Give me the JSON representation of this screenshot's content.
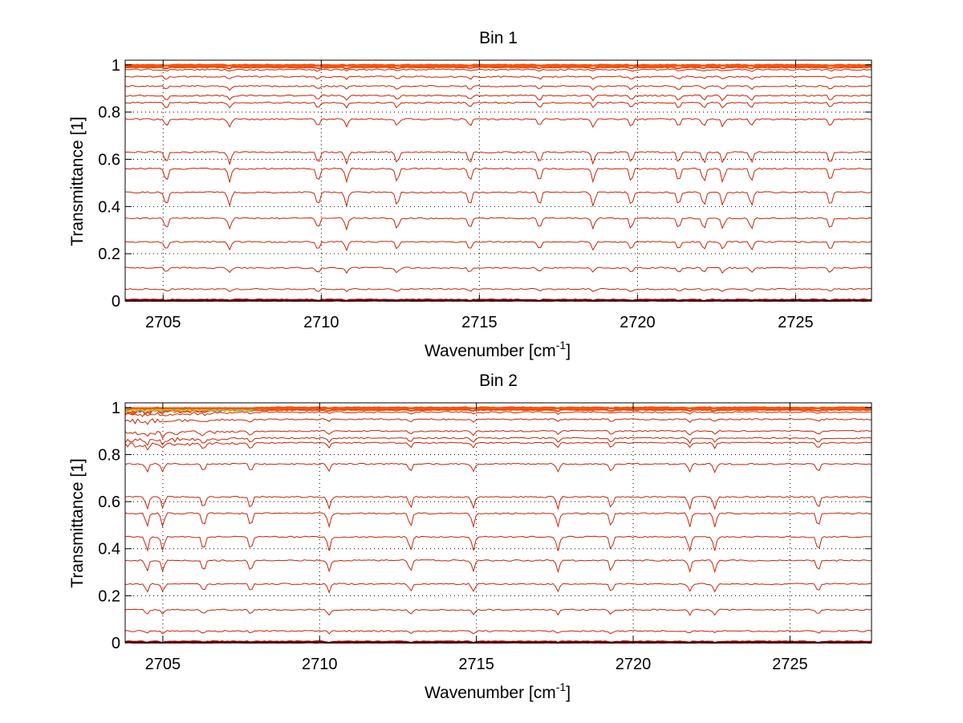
{
  "chart_data": [
    {
      "type": "line",
      "title": "Bin 1",
      "xlabel": "Wavenumber [cm",
      "xlabel_sup": "-1",
      "xlabel_close": "]",
      "ylabel": "Transmittance [1]",
      "xlim": [
        2703.8,
        2727.4
      ],
      "ylim": [
        0,
        1.02
      ],
      "xticks": [
        2705,
        2710,
        2715,
        2720,
        2725
      ],
      "yticks": [
        0,
        0.2,
        0.4,
        0.6,
        0.8,
        1
      ],
      "xtick_labels": [
        "2705",
        "2710",
        "2715",
        "2720",
        "2725"
      ],
      "ytick_labels": [
        "0",
        "0.2",
        "0.4",
        "0.6",
        "0.8",
        "1"
      ],
      "grid": "dotted",
      "series_levels": [
        0.0,
        0.005,
        0.05,
        0.14,
        0.25,
        0.35,
        0.46,
        0.56,
        0.63,
        0.77,
        0.84,
        0.87,
        0.91,
        0.95,
        0.98,
        0.99,
        1.0
      ],
      "series_color": "#cc2200",
      "top_cluster_colors": [
        "#ff6600",
        "#ff9900",
        "#33aaff",
        "#44bb44",
        "#ffcc00"
      ],
      "absorption_lines": [
        2705.1,
        2707.1,
        2709.9,
        2710.8,
        2712.4,
        2714.7,
        2716.9,
        2718.6,
        2719.8,
        2721.3,
        2722.1,
        2722.7,
        2723.6,
        2726.1
      ]
    },
    {
      "type": "line",
      "title": "Bin 2",
      "xlabel": "Wavenumber [cm",
      "xlabel_sup": "-1",
      "xlabel_close": "]",
      "ylabel": "Transmittance [1]",
      "xlim": [
        2703.8,
        2727.6
      ],
      "ylim": [
        0,
        1.02
      ],
      "xticks": [
        2705,
        2710,
        2715,
        2720,
        2725
      ],
      "yticks": [
        0,
        0.2,
        0.4,
        0.6,
        0.8,
        1
      ],
      "xtick_labels": [
        "2705",
        "2710",
        "2715",
        "2720",
        "2725"
      ],
      "ytick_labels": [
        "0",
        "0.2",
        "0.4",
        "0.6",
        "0.8",
        "1"
      ],
      "grid": "dotted",
      "series_levels": [
        0.0,
        0.005,
        0.05,
        0.14,
        0.25,
        0.35,
        0.45,
        0.55,
        0.62,
        0.76,
        0.85,
        0.87,
        0.9,
        0.95,
        0.98,
        0.99,
        1.0
      ],
      "series_color": "#cc2200",
      "top_cluster_colors": [
        "#ff6600",
        "#ff9900",
        "#33aaff",
        "#44bb44",
        "#ffcc00"
      ],
      "absorption_lines": [
        2704.5,
        2705.0,
        2706.3,
        2707.8,
        2710.3,
        2712.9,
        2714.9,
        2717.6,
        2719.3,
        2721.8,
        2722.6,
        2725.9
      ]
    }
  ]
}
